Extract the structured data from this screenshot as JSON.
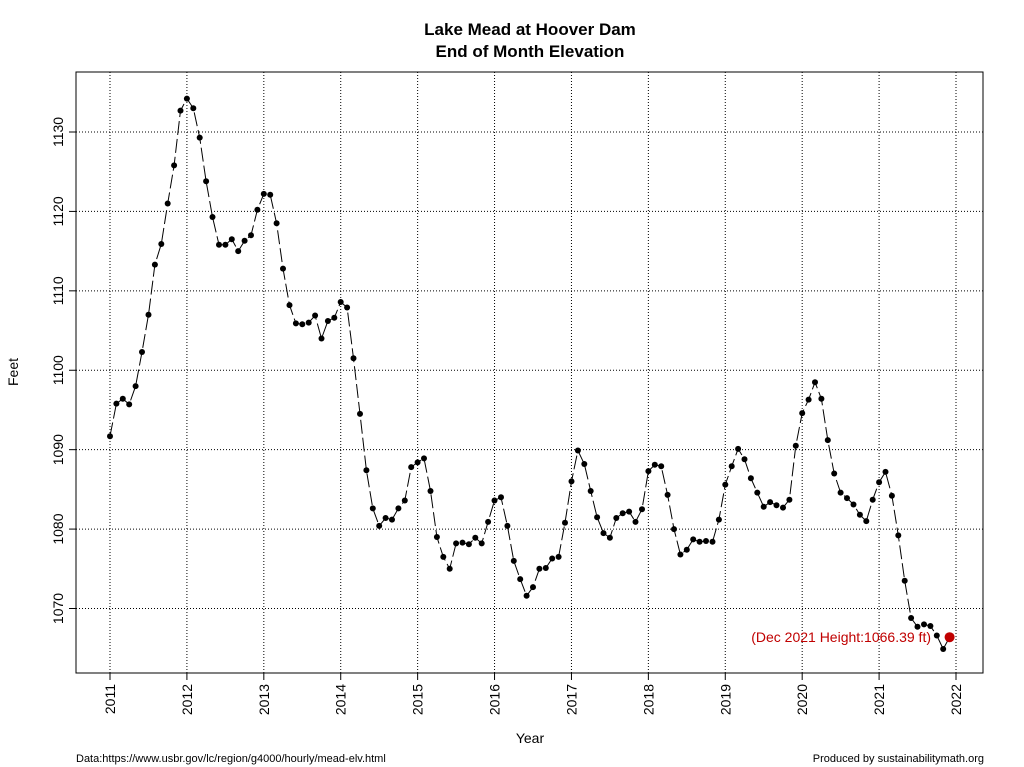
{
  "chart_data": {
    "type": "line",
    "title": "Lake Mead at Hoover Dam",
    "subtitle": "End of Month Elevation",
    "xlabel": "Year",
    "ylabel": "Feet",
    "xlim": [
      2010.75,
      2022.3
    ],
    "ylim": [
      1062,
      1137
    ],
    "x_ticks": [
      "2011",
      "2012",
      "2013",
      "2014",
      "2015",
      "2016",
      "2017",
      "2018",
      "2019",
      "2020",
      "2021",
      "2022"
    ],
    "y_ticks": [
      "1070",
      "1080",
      "1090",
      "1100",
      "1110",
      "1120",
      "1130"
    ],
    "grid": true,
    "series": [
      {
        "values": [
          1091.7,
          1095.8,
          1096.4,
          1095.7,
          1098.0,
          1102.3,
          1107.0,
          1113.3,
          1115.9,
          1121.0,
          1125.8,
          1132.7,
          1134.2,
          1133.0,
          1129.3,
          1123.8,
          1119.3,
          1115.8,
          1115.8,
          1116.5,
          1115.0,
          1116.3,
          1117.0,
          1120.2,
          1122.2,
          1122.1,
          1118.5,
          1112.8,
          1108.2,
          1105.9,
          1105.8,
          1106.0,
          1106.9,
          1104.0,
          1106.2,
          1106.6,
          1108.6,
          1107.9,
          1101.5,
          1094.5,
          1087.4,
          1082.6,
          1080.4,
          1081.4,
          1081.2,
          1082.6,
          1083.6,
          1087.8,
          1088.4,
          1088.9,
          1084.8,
          1079.0,
          1076.5,
          1075.0,
          1078.2,
          1078.3,
          1078.1,
          1078.9,
          1078.2,
          1080.9,
          1083.6,
          1084.0,
          1080.4,
          1076.0,
          1073.7,
          1071.6,
          1072.7,
          1075.0,
          1075.1,
          1076.3,
          1076.5,
          1080.8,
          1086.0,
          1089.9,
          1088.2,
          1084.8,
          1081.5,
          1079.5,
          1078.9,
          1081.4,
          1082.0,
          1082.2,
          1080.9,
          1082.5,
          1087.3,
          1088.1,
          1087.9,
          1084.3,
          1080.0,
          1076.8,
          1077.4,
          1078.7,
          1078.4,
          1078.5,
          1078.4,
          1081.2,
          1085.6,
          1087.9,
          1090.1,
          1088.8,
          1086.4,
          1084.6,
          1082.8,
          1083.4,
          1083.0,
          1082.7,
          1083.7,
          1090.5,
          1094.6,
          1096.3,
          1098.5,
          1096.4,
          1091.2,
          1087.0,
          1084.6,
          1083.9,
          1083.1,
          1081.8,
          1081.0,
          1083.7,
          1085.9,
          1087.2,
          1084.2,
          1079.2,
          1073.5,
          1068.8,
          1067.7,
          1068.0,
          1067.8,
          1066.6,
          1064.9,
          1066.39
        ]
      }
    ],
    "highlight": {
      "label": "Dec 2021",
      "value": 1066.39,
      "color": "#c00000"
    },
    "annotation": "(Dec 2021 Height:1066.39 ft)",
    "colors": {
      "line": "#000000",
      "point": "#000000",
      "highlight": "#c00000",
      "grid": "#000000"
    }
  },
  "footer": {
    "source": "Data:https://www.usbr.gov/lc/region/g4000/hourly/mead-elv.html",
    "credit": "Produced by sustainabilitymath.org"
  }
}
